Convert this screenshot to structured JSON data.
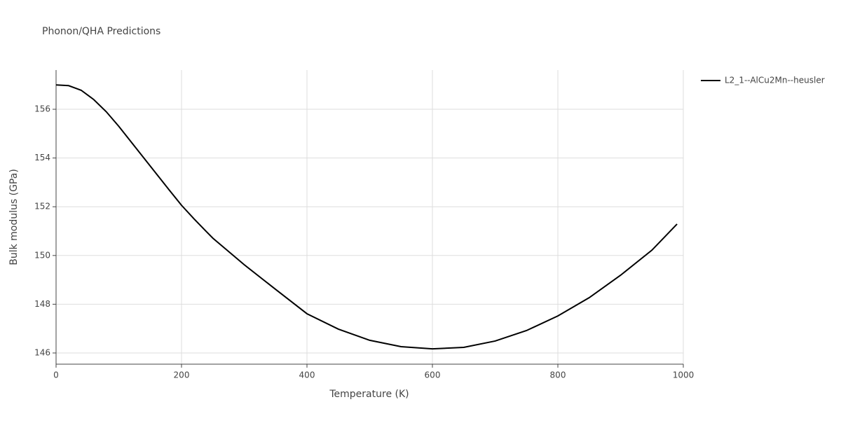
{
  "chart_data": {
    "type": "line",
    "title": "Phonon/QHA Predictions",
    "x_label": "Temperature (K)",
    "y_label": "Bulk modulus (GPa)",
    "x": [
      0,
      20,
      40,
      60,
      80,
      100,
      120,
      140,
      160,
      180,
      200,
      220,
      240,
      250,
      300,
      350,
      400,
      450,
      500,
      550,
      600,
      650,
      700,
      750,
      800,
      850,
      900,
      950,
      990
    ],
    "series": [
      {
        "name": "L2_1--AlCu2Mn--heusler",
        "color": "#000000",
        "values": [
          157.0,
          156.97,
          156.78,
          156.4,
          155.9,
          155.3,
          154.65,
          154.0,
          153.35,
          152.7,
          152.06,
          151.5,
          150.97,
          150.71,
          149.62,
          148.61,
          147.61,
          146.98,
          146.52,
          146.26,
          146.17,
          146.23,
          146.49,
          146.92,
          147.52,
          148.27,
          149.19,
          150.22,
          151.29
        ]
      }
    ],
    "xlim": [
      0,
      1000
    ],
    "xticks": [
      0,
      200,
      400,
      600,
      800,
      1000
    ],
    "ylim": [
      145.54,
      157.61
    ],
    "yticks": [
      146,
      148,
      150,
      152,
      154,
      156
    ],
    "grid": true,
    "legend": "right"
  }
}
